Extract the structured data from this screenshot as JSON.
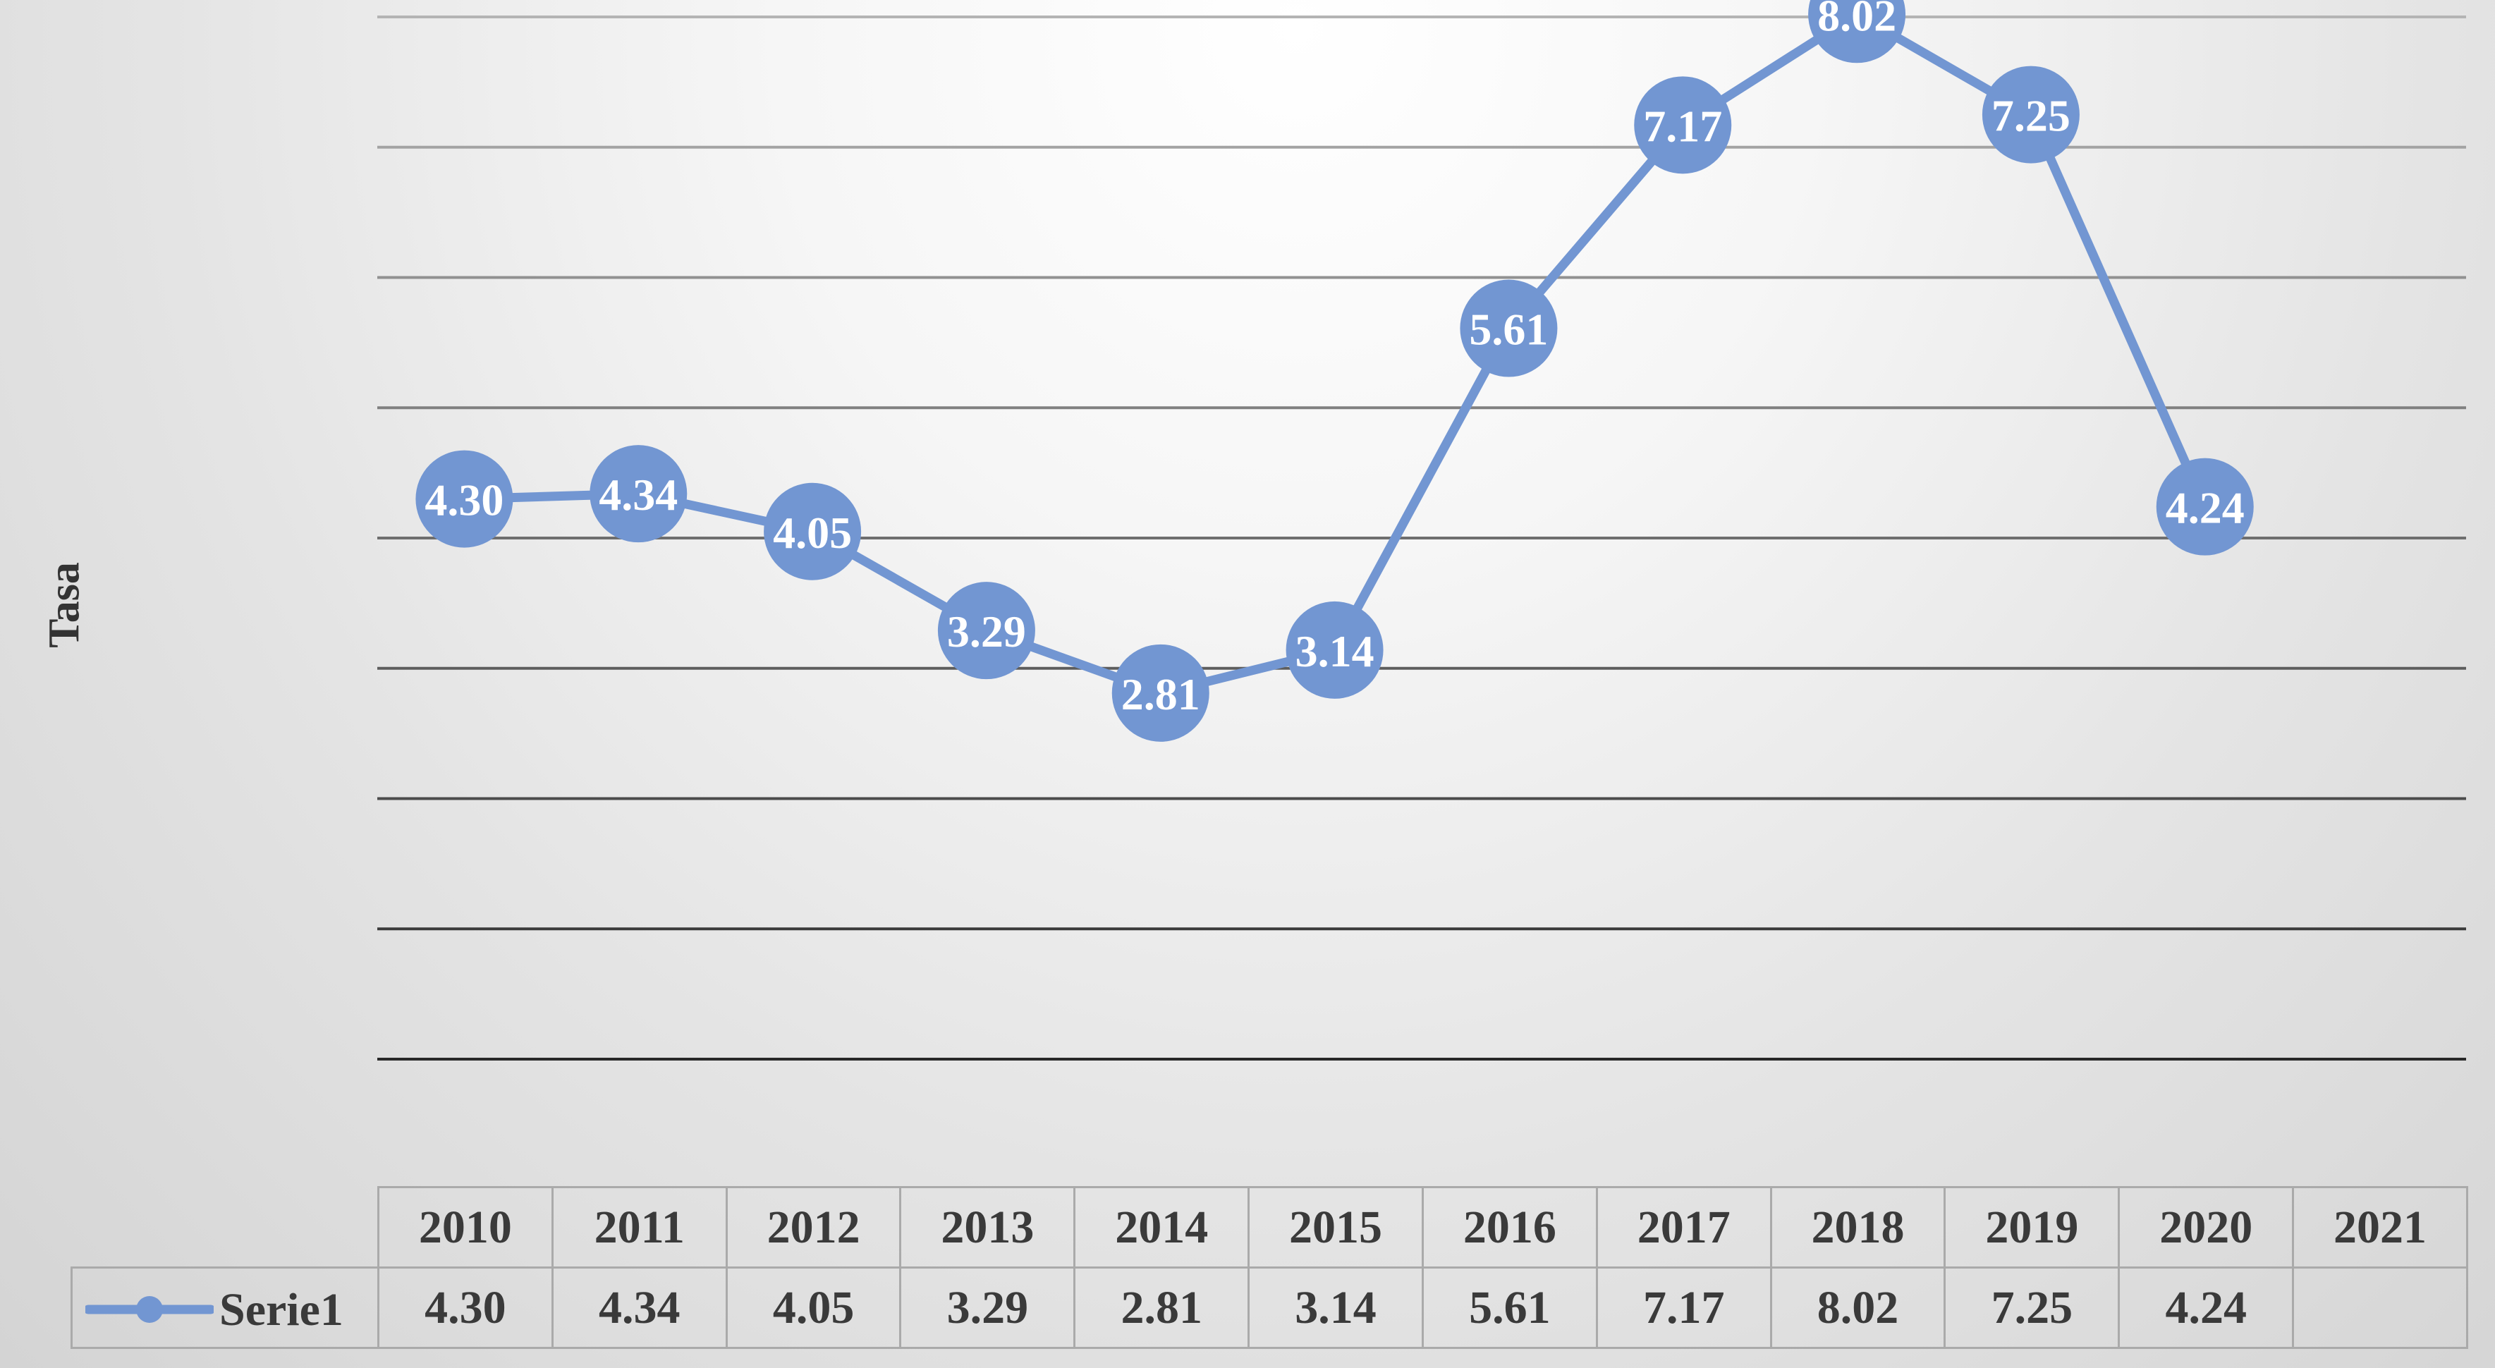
{
  "chart_data": {
    "type": "line",
    "title": "",
    "xlabel": "",
    "ylabel": "Tasa",
    "categories": [
      "2010",
      "2011",
      "2012",
      "2013",
      "2014",
      "2015",
      "2016",
      "2017",
      "2018",
      "2019",
      "2020",
      "2021"
    ],
    "series": [
      {
        "name": "Serie1",
        "values": [
          4.3,
          4.34,
          4.05,
          3.29,
          2.81,
          3.14,
          5.61,
          7.17,
          8.02,
          7.25,
          4.24,
          null
        ],
        "labels": [
          "4.30",
          "4.34",
          "4.05",
          "3.29",
          "2.81",
          "3.14",
          "5.61",
          "7.17",
          "8.02",
          "7.25",
          "4.24",
          ""
        ],
        "color": "#7296d2"
      }
    ],
    "ylim": [
      0,
      8
    ],
    "gridlines": [
      0,
      1,
      2,
      3,
      4,
      5,
      6,
      7,
      8
    ],
    "grid": true,
    "data_labels": true,
    "y_tick_labels_shown": false,
    "data_table_below": true,
    "legend": "data-table-left"
  }
}
